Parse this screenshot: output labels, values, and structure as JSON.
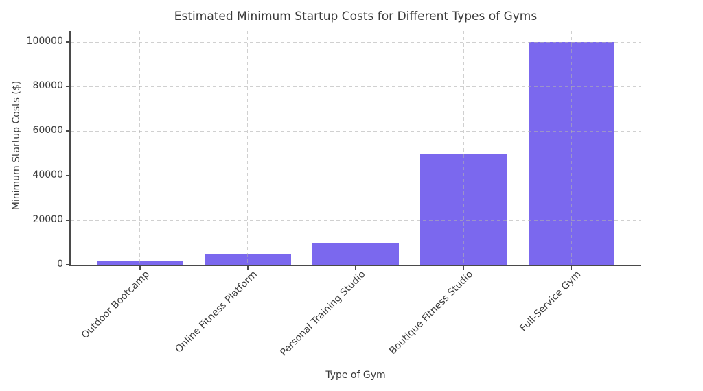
{
  "chart_data": {
    "type": "bar",
    "title": "Estimated Minimum Startup Costs for Different Types of Gyms",
    "xlabel": "Type of Gym",
    "ylabel": "Minimum Startup Costs ($)",
    "categories": [
      "Outdoor Bootcamp",
      "Online Fitness Platform",
      "Personal Training Studio",
      "Boutique Fitness Studio",
      "Full-Service Gym"
    ],
    "values": [
      2000,
      5000,
      10000,
      50000,
      100000
    ],
    "yticks": [
      0,
      20000,
      40000,
      60000,
      80000,
      100000
    ],
    "ylim": [
      0,
      105000
    ],
    "xtick_rotation": 45,
    "grid": {
      "visible": true,
      "style": "dashed",
      "color": "#b0b0b0",
      "opacity": 0.6,
      "above_bars": true
    },
    "legend": "none",
    "colors": {
      "bar": "#7b68ee",
      "text": "#3a3a3a",
      "spine": "#4a4a4a",
      "background": "#ffffff"
    }
  }
}
